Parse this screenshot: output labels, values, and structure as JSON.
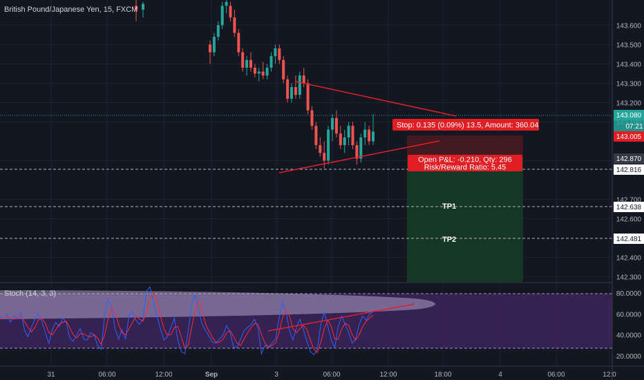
{
  "header": {
    "title": "British Pound/Japanese Yen, 15, FXCM"
  },
  "chart_data": {
    "type": "candlestick",
    "title": "British Pound/Japanese Yen, 15, FXCM",
    "ylim": [
      142.27,
      143.73
    ],
    "y_ticks": [
      "143.600",
      "143.500",
      "143.400",
      "143.300",
      "143.200",
      "143.100",
      "142.900",
      "142.700",
      "142.600",
      "142.400",
      "142.300"
    ],
    "x_ticks": [
      "31",
      "06:00",
      "12:00",
      "Sep",
      "3",
      "06:00",
      "12:00",
      "18:00",
      "4",
      "06:00",
      "12:0"
    ],
    "candles": [
      {
        "o": 143.7,
        "h": 143.74,
        "l": 143.62,
        "c": 143.68
      },
      {
        "o": 143.68,
        "h": 143.72,
        "l": 143.64,
        "c": 143.71
      },
      {
        "o": 143.5,
        "h": 143.52,
        "l": 143.4,
        "c": 143.46
      },
      {
        "o": 143.46,
        "h": 143.56,
        "l": 143.44,
        "c": 143.54
      },
      {
        "o": 143.54,
        "h": 143.62,
        "l": 143.52,
        "c": 143.6
      },
      {
        "o": 143.6,
        "h": 143.72,
        "l": 143.58,
        "c": 143.7
      },
      {
        "o": 143.7,
        "h": 143.74,
        "l": 143.66,
        "c": 143.72
      },
      {
        "o": 143.7,
        "h": 143.72,
        "l": 143.62,
        "c": 143.64
      },
      {
        "o": 143.64,
        "h": 143.68,
        "l": 143.54,
        "c": 143.56
      },
      {
        "o": 143.56,
        "h": 143.58,
        "l": 143.44,
        "c": 143.46
      },
      {
        "o": 143.46,
        "h": 143.48,
        "l": 143.36,
        "c": 143.38
      },
      {
        "o": 143.38,
        "h": 143.44,
        "l": 143.34,
        "c": 143.42
      },
      {
        "o": 143.42,
        "h": 143.46,
        "l": 143.36,
        "c": 143.38
      },
      {
        "o": 143.38,
        "h": 143.4,
        "l": 143.33,
        "c": 143.35
      },
      {
        "o": 143.35,
        "h": 143.38,
        "l": 143.31,
        "c": 143.36
      },
      {
        "o": 143.36,
        "h": 143.41,
        "l": 143.32,
        "c": 143.34
      },
      {
        "o": 143.34,
        "h": 143.4,
        "l": 143.32,
        "c": 143.38
      },
      {
        "o": 143.38,
        "h": 143.46,
        "l": 143.36,
        "c": 143.44
      },
      {
        "o": 143.44,
        "h": 143.5,
        "l": 143.4,
        "c": 143.48
      },
      {
        "o": 143.48,
        "h": 143.5,
        "l": 143.4,
        "c": 143.42
      },
      {
        "o": 143.42,
        "h": 143.44,
        "l": 143.3,
        "c": 143.32
      },
      {
        "o": 143.32,
        "h": 143.34,
        "l": 143.2,
        "c": 143.22
      },
      {
        "o": 143.22,
        "h": 143.3,
        "l": 143.2,
        "c": 143.28
      },
      {
        "o": 143.28,
        "h": 143.34,
        "l": 143.22,
        "c": 143.24
      },
      {
        "o": 143.24,
        "h": 143.36,
        "l": 143.22,
        "c": 143.34
      },
      {
        "o": 143.34,
        "h": 143.38,
        "l": 143.28,
        "c": 143.3
      },
      {
        "o": 143.3,
        "h": 143.32,
        "l": 143.14,
        "c": 143.16
      },
      {
        "o": 143.16,
        "h": 143.18,
        "l": 143.06,
        "c": 143.08
      },
      {
        "o": 143.08,
        "h": 143.1,
        "l": 142.96,
        "c": 142.98
      },
      {
        "o": 142.98,
        "h": 143.02,
        "l": 142.92,
        "c": 142.94
      },
      {
        "o": 142.94,
        "h": 143.0,
        "l": 142.86,
        "c": 142.9
      },
      {
        "o": 142.9,
        "h": 143.08,
        "l": 142.88,
        "c": 143.06
      },
      {
        "o": 143.06,
        "h": 143.14,
        "l": 143.0,
        "c": 143.12
      },
      {
        "o": 143.12,
        "h": 143.16,
        "l": 143.02,
        "c": 143.04
      },
      {
        "o": 143.04,
        "h": 143.08,
        "l": 142.96,
        "c": 142.98
      },
      {
        "o": 142.98,
        "h": 143.06,
        "l": 142.94,
        "c": 143.02
      },
      {
        "o": 143.02,
        "h": 143.1,
        "l": 142.98,
        "c": 143.08
      },
      {
        "o": 143.08,
        "h": 143.1,
        "l": 142.96,
        "c": 142.98
      },
      {
        "o": 142.98,
        "h": 143.0,
        "l": 142.88,
        "c": 142.91
      },
      {
        "o": 142.91,
        "h": 143.04,
        "l": 142.89,
        "c": 143.02
      },
      {
        "o": 143.02,
        "h": 143.1,
        "l": 142.98,
        "c": 143.06
      },
      {
        "o": 143.06,
        "h": 143.08,
        "l": 142.98,
        "c": 143.0
      },
      {
        "o": 143.0,
        "h": 143.14,
        "l": 142.98,
        "c": 143.05
      }
    ],
    "stochastic": {
      "name": "Stoch (14, 3, 3)",
      "ylim": [
        10,
        90
      ],
      "y_ticks": [
        "80.0000",
        "60.0000",
        "40.0000",
        "20.0000"
      ],
      "k": [
        57,
        55,
        60,
        52,
        58,
        55,
        62,
        45,
        38,
        47,
        55,
        60,
        53,
        42,
        32,
        45,
        52,
        48,
        56,
        52,
        37,
        34,
        40,
        46,
        36,
        35,
        42,
        40,
        30,
        26,
        58,
        74,
        66,
        46,
        36,
        45,
        36,
        58,
        62,
        54,
        50,
        55,
        82,
        86,
        71,
        58,
        46,
        35,
        38,
        47,
        56,
        35,
        24,
        22,
        44,
        70,
        78,
        62,
        50,
        44,
        38,
        33,
        32,
        36,
        40,
        49,
        42,
        28,
        28,
        36,
        44,
        47,
        50,
        55,
        46,
        22,
        30,
        28,
        32,
        36,
        55,
        72,
        62,
        44,
        35,
        47,
        55,
        45,
        34,
        24,
        21,
        26,
        50,
        62,
        48,
        35,
        28,
        48,
        58,
        50,
        42,
        32,
        36,
        50,
        58,
        54,
        60,
        62
      ],
      "d": [
        56,
        56,
        57,
        56,
        55,
        57,
        58,
        53,
        47,
        43,
        47,
        54,
        56,
        51,
        42,
        40,
        45,
        50,
        52,
        53,
        47,
        40,
        37,
        41,
        41,
        39,
        38,
        40,
        37,
        31,
        40,
        55,
        66,
        62,
        50,
        42,
        40,
        46,
        52,
        58,
        55,
        53,
        62,
        74,
        80,
        72,
        58,
        46,
        40,
        40,
        47,
        48,
        38,
        27,
        30,
        48,
        64,
        72,
        62,
        50,
        43,
        37,
        33,
        33,
        36,
        42,
        44,
        38,
        32,
        30,
        36,
        42,
        47,
        51,
        50,
        40,
        32,
        28,
        30,
        32,
        42,
        56,
        64,
        58,
        46,
        42,
        46,
        49,
        45,
        35,
        26,
        23,
        33,
        46,
        54,
        48,
        36,
        36,
        46,
        51,
        49,
        40,
        35,
        40,
        48,
        53,
        56,
        59
      ]
    }
  },
  "levels": {
    "current_price": "143.080",
    "countdown": "07:21",
    "stop_price": "143.005",
    "entry_price": "142.870",
    "entry_dashed": "142.816",
    "tp1_price": "142.638",
    "tp2_price": "142.481",
    "tp1_label": "TP1",
    "tp2_label": "TP2"
  },
  "position": {
    "stop_label": "Stop: 0.135 (0.09%) 13.5, Amount: 360.04",
    "pnl_line1": "Open P&L: -0.210, Qty: 296",
    "pnl_line2": "Risk/Reward Ratio: 5.45"
  },
  "colors": {
    "background": "#131722",
    "up": "#26a69a",
    "down": "#ef5350",
    "trendline": "#e0202a",
    "profit_zone": "#1b5e20",
    "loss_zone": "#7f1d1d",
    "stoch_k": "#2962ff",
    "stoch_d": "#ff2a3a",
    "stoch_band": "#4a2a6e"
  }
}
